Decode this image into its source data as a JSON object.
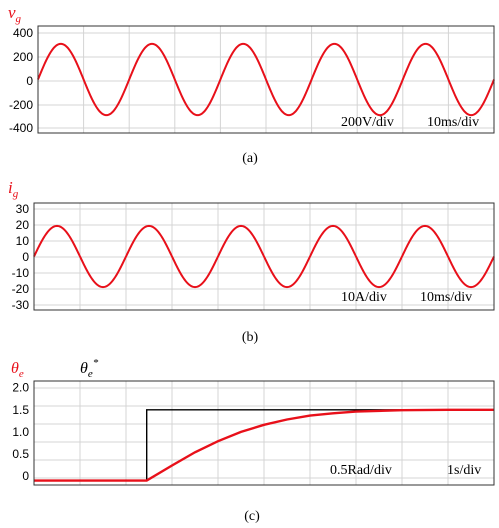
{
  "chart_data": [
    {
      "type": "line",
      "panel_label": "(a)",
      "symbol": {
        "base": "v",
        "sub": "g"
      },
      "yticks": [
        "400",
        "200",
        "0",
        "-200",
        "-400"
      ],
      "ylim": [
        -450,
        450
      ],
      "xlim": [
        0,
        100
      ],
      "grid": true,
      "annotations": [
        "200V/div",
        "10ms/div"
      ],
      "colors": {
        "trace": "#e8101a",
        "symbol": "#e8101a"
      },
      "series": [
        {
          "amplitude": 300,
          "period": 20,
          "phase_deg": 0,
          "offset": 0
        }
      ]
    },
    {
      "type": "line",
      "panel_label": "(b)",
      "symbol": {
        "base": "i",
        "sub": "g"
      },
      "yticks": [
        "30",
        "20",
        "10",
        "0",
        "-10",
        "-20",
        "-30"
      ],
      "ylim": [
        -35,
        35
      ],
      "xlim": [
        0,
        100
      ],
      "grid": true,
      "annotations": [
        "10A/div",
        "10ms/div"
      ],
      "colors": {
        "trace": "#e8101a",
        "symbol": "#e8101a"
      },
      "series": [
        {
          "amplitude": 20,
          "period": 20,
          "phase_deg": 0,
          "offset": 0
        }
      ]
    },
    {
      "type": "line",
      "panel_label": "(c)",
      "legend": [
        {
          "base": "θ",
          "sub": "e",
          "sup": "",
          "color": "#e8101a"
        },
        {
          "base": "θ",
          "sub": "e",
          "sup": "*",
          "color": "#000000"
        }
      ],
      "yticks": [
        "2.0",
        "1.5",
        "1.0",
        "0.5",
        "0"
      ],
      "ylim": [
        -0.2,
        2.15
      ],
      "xlim": [
        0,
        10
      ],
      "grid": true,
      "annotations": [
        "0.5Rad/div",
        "1s/div"
      ],
      "colors": {
        "estimate": "#e8101a",
        "reference": "#000000"
      },
      "series": [
        {
          "role": "reference",
          "x": [
            0,
            2.45,
            2.45,
            10
          ],
          "y": [
            -0.1,
            -0.1,
            1.5,
            1.5
          ]
        },
        {
          "role": "estimate",
          "x": [
            0,
            2.45,
            3.0,
            3.5,
            4.0,
            4.5,
            5.0,
            5.5,
            6.0,
            6.5,
            7.0,
            8.0,
            9.0,
            10.0
          ],
          "y": [
            -0.1,
            -0.1,
            0.24,
            0.54,
            0.79,
            1.0,
            1.16,
            1.28,
            1.37,
            1.42,
            1.46,
            1.49,
            1.5,
            1.5
          ]
        }
      ]
    }
  ]
}
